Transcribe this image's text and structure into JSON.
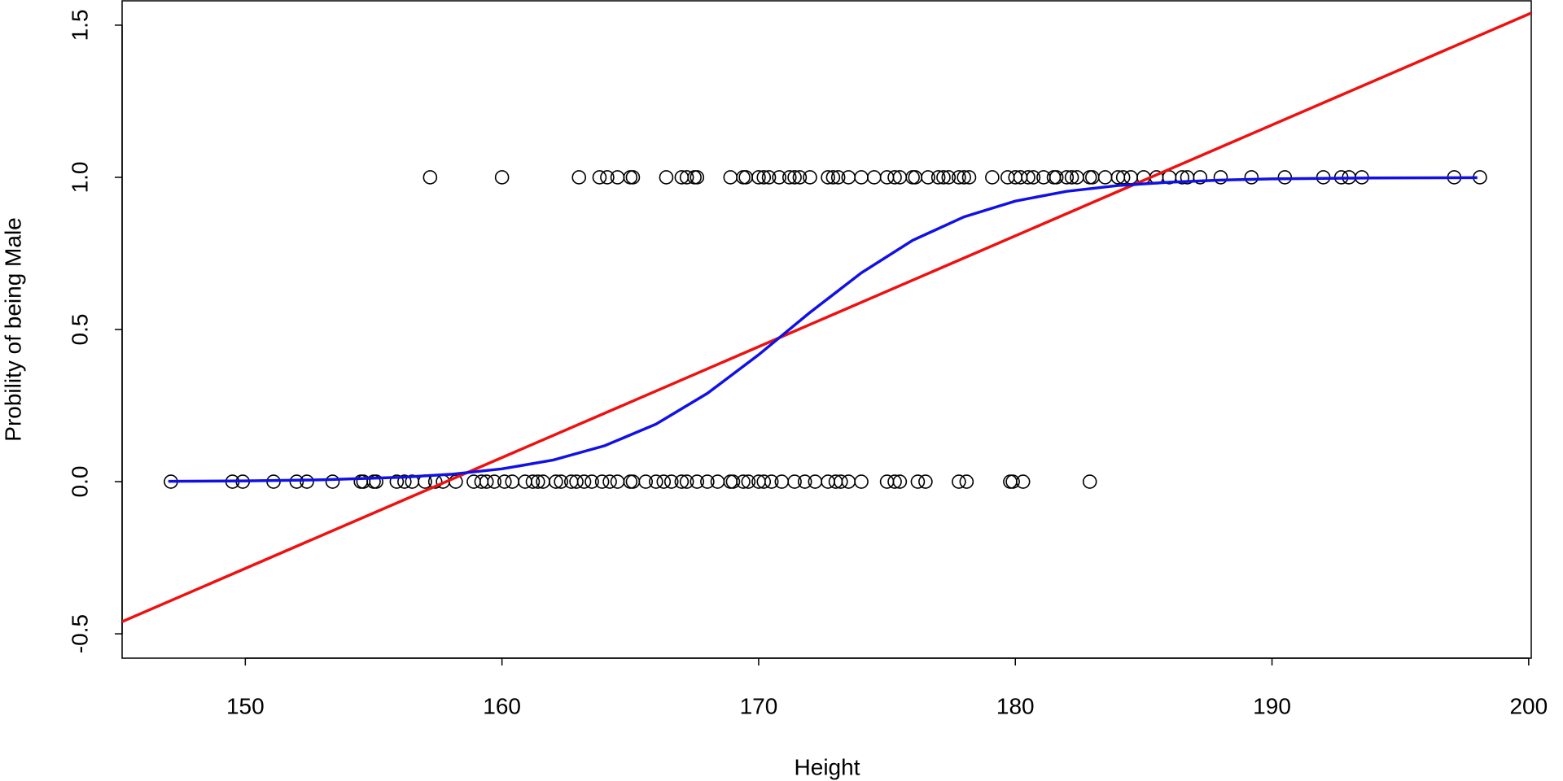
{
  "chart_data": {
    "type": "scatter",
    "x_label": "Height",
    "y_label": "Probility of being Male",
    "xlim": [
      145.2,
      200.1
    ],
    "ylim": [
      -0.58,
      1.58
    ],
    "xticks": [
      150,
      160,
      170,
      180,
      190,
      200
    ],
    "yticks": [
      -0.5,
      {
        "value": 0,
        "label": "0.0"
      },
      0.5,
      {
        "value": 1,
        "label": "1.0"
      },
      1.5
    ],
    "grid": false,
    "series": [
      {
        "type": "scatter",
        "color": "#000000",
        "x": [
          157.2,
          160,
          163,
          163.8,
          164.1,
          164.5,
          165,
          165.1,
          166.4,
          167,
          167.2,
          167.5,
          167.6,
          168.9,
          169.4,
          169.5,
          170,
          170.2,
          170.4,
          170.8,
          171.2,
          171.4,
          171.6,
          172,
          172.7,
          172.9,
          173.1,
          173.5,
          174,
          174.5,
          175,
          175.3,
          175.5,
          176,
          176.1,
          176.6,
          177,
          177.2,
          177.4,
          177.8,
          178,
          178.2,
          179.1,
          179.7,
          180,
          180.2,
          180.5,
          180.7,
          181.1,
          181.5,
          181.6,
          182,
          182.2,
          182.4,
          182.9,
          183,
          183.5,
          184,
          184.2,
          184.5,
          185,
          185.5,
          186,
          186.5,
          186.7,
          187.2,
          188,
          189.2,
          190.5,
          192,
          192.7,
          193,
          193.5,
          197.1,
          198.1
        ],
        "values": [
          1,
          1,
          1,
          1,
          1,
          1,
          1,
          1,
          1,
          1,
          1,
          1,
          1,
          1,
          1,
          1,
          1,
          1,
          1,
          1,
          1,
          1,
          1,
          1,
          1,
          1,
          1,
          1,
          1,
          1,
          1,
          1,
          1,
          1,
          1,
          1,
          1,
          1,
          1,
          1,
          1,
          1,
          1,
          1,
          1,
          1,
          1,
          1,
          1,
          1,
          1,
          1,
          1,
          1,
          1,
          1,
          1,
          1,
          1,
          1,
          1,
          1,
          1,
          1,
          1,
          1,
          1,
          1,
          1,
          1,
          1,
          1,
          1,
          1,
          1
        ]
      },
      {
        "type": "scatter",
        "color": "#000000",
        "x": [
          147.1,
          149.5,
          149.9,
          151.1,
          152,
          152.4,
          153.4,
          154.5,
          154.6,
          155,
          155.1,
          155.9,
          156.2,
          156.5,
          157,
          157.4,
          157.7,
          158.2,
          158.9,
          159.2,
          159.4,
          159.7,
          160.1,
          160.4,
          160.9,
          161.2,
          161.4,
          161.6,
          162.1,
          162.3,
          162.7,
          162.9,
          163.2,
          163.5,
          163.9,
          164.2,
          164.5,
          165,
          165.1,
          165.6,
          166,
          166.3,
          166.6,
          167,
          167.2,
          167.6,
          168,
          168.4,
          168.9,
          169,
          169.4,
          169.6,
          170,
          170.2,
          170.5,
          170.9,
          171.4,
          171.8,
          172.2,
          172.7,
          173,
          173.2,
          173.5,
          174,
          175,
          175.3,
          175.5,
          176.2,
          176.5,
          177.8,
          178.1,
          179.8,
          179.9,
          180.3,
          182.9
        ],
        "values": [
          0,
          0,
          0,
          0,
          0,
          0,
          0,
          0,
          0,
          0,
          0,
          0,
          0,
          0,
          0,
          0,
          0,
          0,
          0,
          0,
          0,
          0,
          0,
          0,
          0,
          0,
          0,
          0,
          0,
          0,
          0,
          0,
          0,
          0,
          0,
          0,
          0,
          0,
          0,
          0,
          0,
          0,
          0,
          0,
          0,
          0,
          0,
          0,
          0,
          0,
          0,
          0,
          0,
          0,
          0,
          0,
          0,
          0,
          0,
          0,
          0,
          0,
          0,
          0,
          0,
          0,
          0,
          0,
          0,
          0,
          0,
          0,
          0,
          0,
          0
        ]
      },
      {
        "type": "line",
        "color": "#ee1111",
        "x": [
          145.2,
          200.1
        ],
        "values": [
          -0.46,
          1.54
        ]
      },
      {
        "type": "line",
        "color": "#1111e6",
        "x": [
          147,
          150,
          153,
          156,
          158,
          160,
          162,
          164,
          166,
          168,
          170,
          172,
          174,
          176,
          178,
          180,
          182,
          184,
          186,
          188,
          190,
          194,
          198
        ],
        "values": [
          0.001,
          0.0026,
          0.0061,
          0.014,
          0.024,
          0.042,
          0.071,
          0.118,
          0.189,
          0.29,
          0.417,
          0.556,
          0.686,
          0.793,
          0.87,
          0.922,
          0.954,
          0.973,
          0.984,
          0.991,
          0.995,
          0.998,
          0.999
        ]
      }
    ]
  }
}
